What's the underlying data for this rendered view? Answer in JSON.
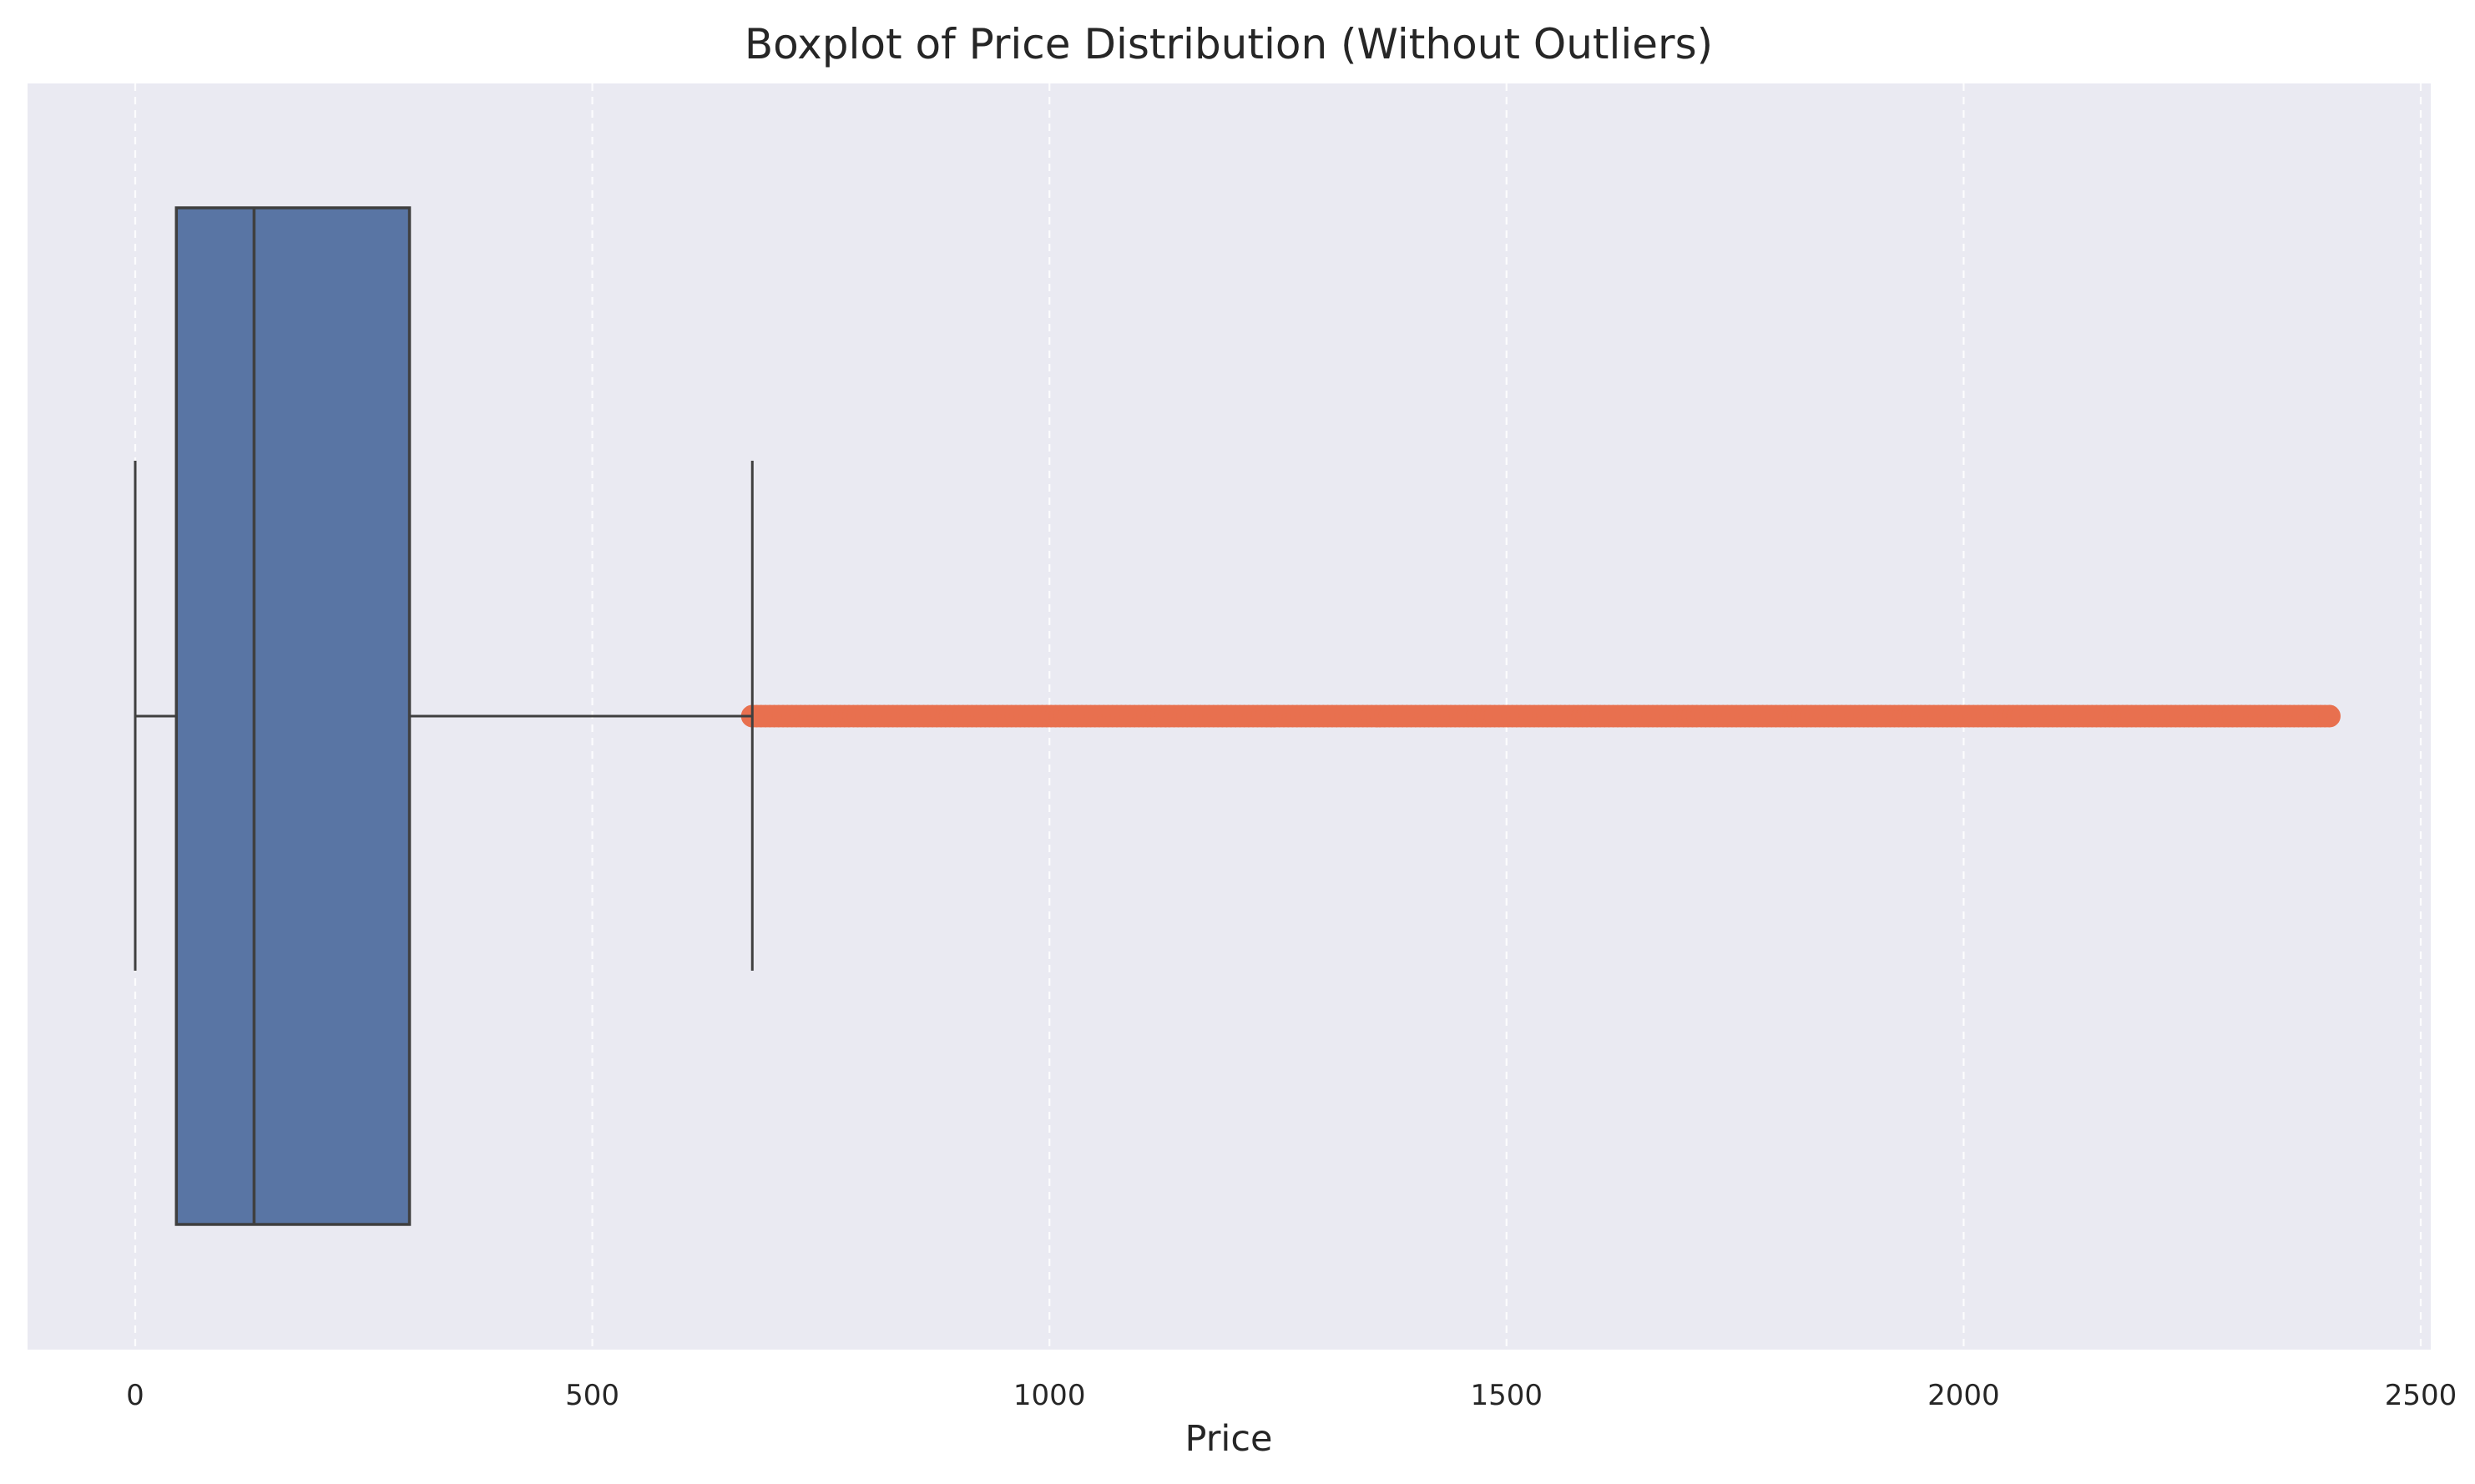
{
  "chart_data": {
    "type": "boxplot",
    "orientation": "horizontal",
    "title": "Boxplot of Price Distribution (Without Outliers)",
    "xlabel": "Price",
    "ylabel": "",
    "xlim": [
      -120,
      2515
    ],
    "xticks": [
      0,
      500,
      1000,
      1500,
      2000,
      2500
    ],
    "xtick_labels": [
      "0",
      "500",
      "1000",
      "1500",
      "2000",
      "2500"
    ],
    "grid": {
      "x": true,
      "y": false,
      "style": "dashed"
    },
    "box": {
      "whisker_low": 0,
      "q1": 45,
      "median": 130,
      "q3": 300,
      "whisker_high": 675
    },
    "outliers": {
      "range": [
        675,
        2400
      ],
      "description_count": 0
    },
    "colors": {
      "background": "#eaeaf2",
      "box_fill": "#5975a4",
      "box_edge": "#3f3f3f",
      "outlier": "#e8704f",
      "grid": "#ffffff"
    }
  }
}
